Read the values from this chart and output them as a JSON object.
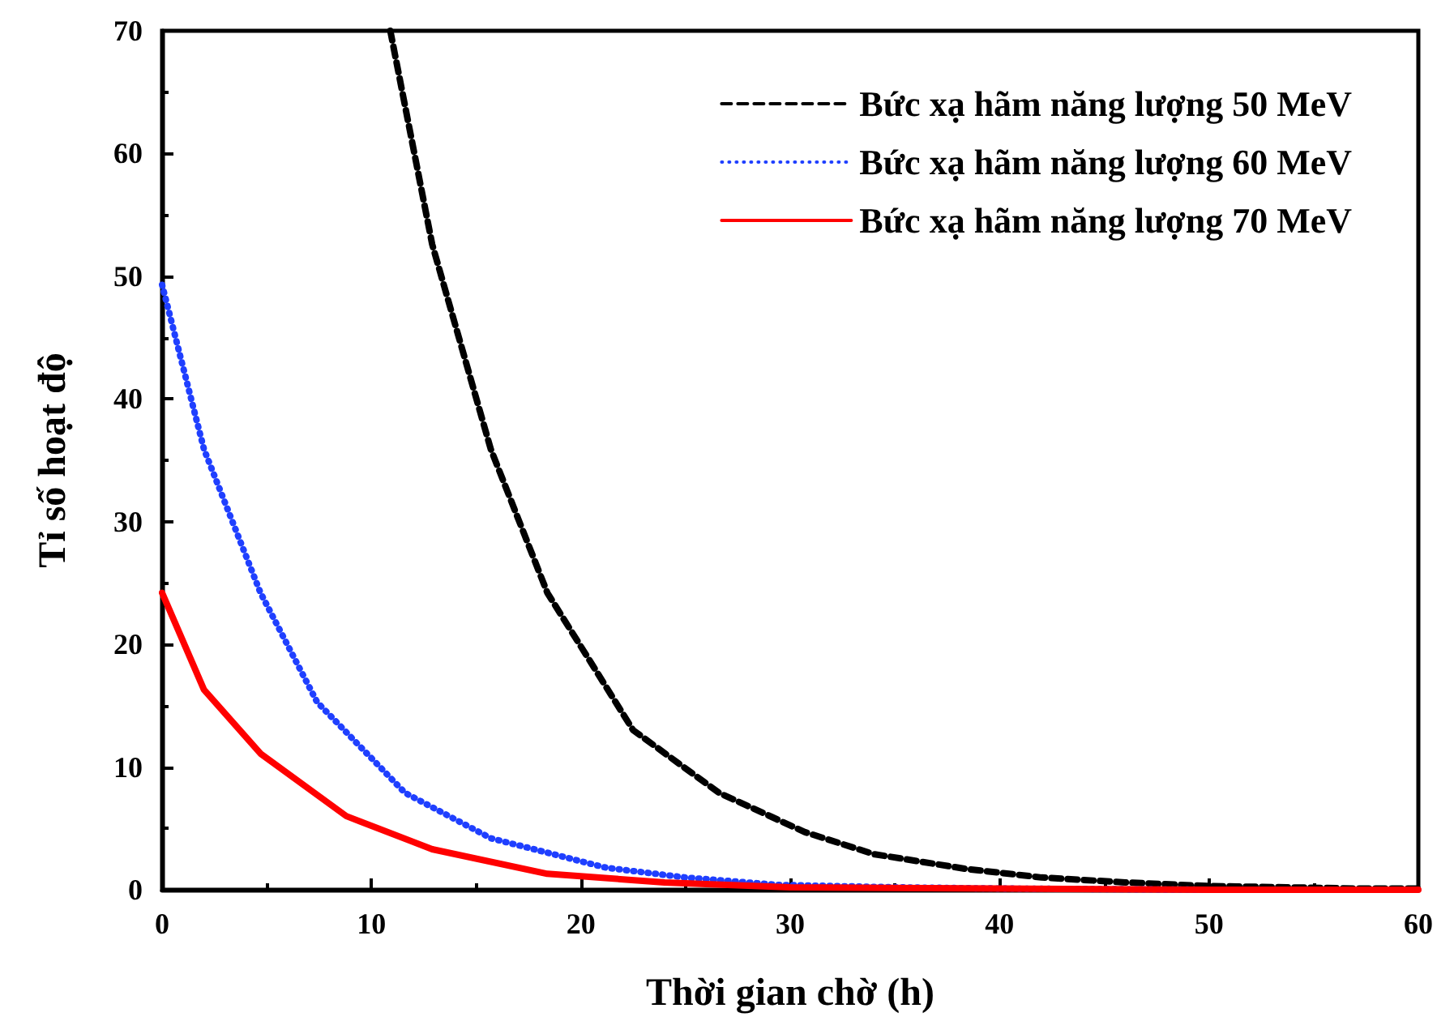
{
  "chart_data": {
    "type": "line",
    "xlabel": "Thời gian chờ (h)",
    "ylabel": "Tỉ số hoạt độ",
    "xlim": [
      0,
      60
    ],
    "xticks": [
      0,
      10,
      20,
      30,
      40,
      50,
      60
    ],
    "ylim": [
      0,
      70
    ],
    "yticks": [
      0,
      10,
      20,
      30,
      40,
      50,
      60,
      70
    ],
    "grid": false,
    "legend": "top right",
    "marker": "none",
    "series": [
      {
        "name": "Bức xạ hãm năng lượng 50 MeV",
        "color": "#000000",
        "line_style": "dashed",
        "x": [
          10.9,
          12.9,
          15.7,
          18.4,
          22.5,
          26.6,
          30.7,
          34,
          38.4,
          42,
          46,
          50,
          53.7,
          57,
          60
        ],
        "values": [
          70,
          52.6,
          35.9,
          24.2,
          13,
          7.9,
          4.7,
          2.9,
          1.7,
          1,
          0.6,
          0.3,
          0.2,
          0.1,
          0.1
        ]
      },
      {
        "name": "Bức xạ hãm năng lượng 60 MeV",
        "color": "#1f3fff",
        "line_style": "dotted",
        "x": [
          0,
          2,
          4.7,
          7.4,
          11.6,
          15.7,
          21.2,
          25,
          29.4,
          35,
          40,
          50,
          60
        ],
        "values": [
          49.3,
          35.9,
          24.2,
          15.3,
          7.9,
          4.2,
          1.8,
          1,
          0.4,
          0.2,
          0.1,
          0,
          0
        ]
      },
      {
        "name": "Bức xạ hãm năng lượng 70 MeV",
        "color": "#ff0000",
        "line_style": "solid",
        "x": [
          0,
          2,
          4.7,
          8.8,
          12.9,
          18.4,
          24,
          30,
          40,
          50,
          60
        ],
        "values": [
          24.2,
          16.3,
          11.1,
          6,
          3.3,
          1.3,
          0.6,
          0.2,
          0.1,
          0,
          0
        ]
      }
    ]
  }
}
